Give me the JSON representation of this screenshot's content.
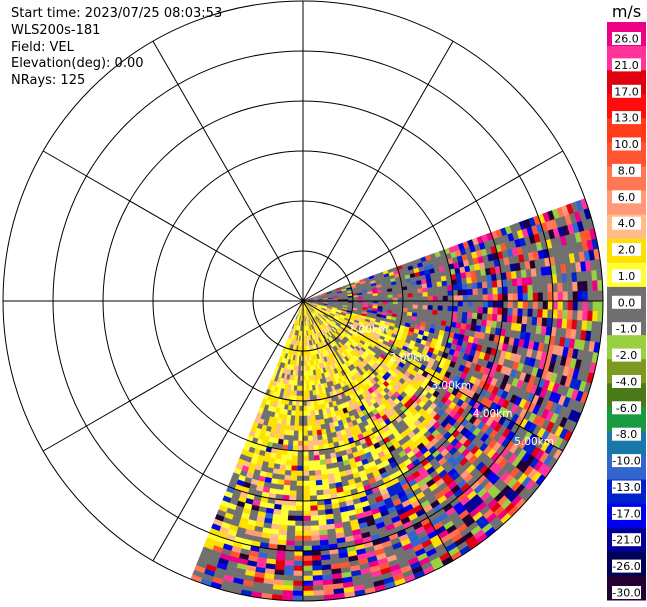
{
  "header": {
    "start_time": "Start time: 2023/07/25 08:03:53",
    "instrument": "WLS200s-181",
    "field": "Field: VEL",
    "elevation": "Elevation(deg): 0.00",
    "nrays": "NRays: 125"
  },
  "chart_data": {
    "type": "heatmap",
    "projection": "polar-ppi",
    "field": "VEL",
    "units": "m/s",
    "start_time": "2023/07/25 08:03:53",
    "elevation_deg": 0.0,
    "nrays": 125,
    "sector_azimuth_deg": [
      70,
      202
    ],
    "range_rings_km": [
      1.0,
      2.0,
      3.0,
      4.0,
      5.0,
      6.0
    ],
    "ring_labels": [
      "1.00km",
      "2.00km",
      "3.00km",
      "4.00km",
      "5.00km"
    ],
    "colorbar": {
      "title": "m/s",
      "ticks": [
        "26.0",
        "21.0",
        "17.0",
        "13.0",
        "10.0",
        "8.0",
        "6.0",
        "4.0",
        "2.0",
        "1.0",
        "0.0",
        "-1.0",
        "-2.0",
        "-4.0",
        "-6.0",
        "-8.0",
        "-10.0",
        "-13.0",
        "-17.0",
        "-21.0",
        "-26.0",
        "-30.0"
      ],
      "colors": [
        "#ee0086",
        "#ff3399",
        "#e00010",
        "#ff0d0d",
        "#ff3b1a",
        "#ff5533",
        "#ff7755",
        "#ff9977",
        "#ffbb88",
        "#ffe000",
        "#ffff33",
        "#707070",
        "#707070",
        "#98d040",
        "#7a9a20",
        "#4a7a18",
        "#1a9a40",
        "#1a77aa",
        "#3366cc",
        "#0022cc",
        "#0000ee",
        "#000099",
        "#000055",
        "#220033"
      ],
      "range": [
        -30,
        30
      ]
    },
    "pattern": "near-range yellow (2-6 m/s) core toward south-southeast, grey (~0 m/s) bands, far-range noisy mixed velocities"
  }
}
